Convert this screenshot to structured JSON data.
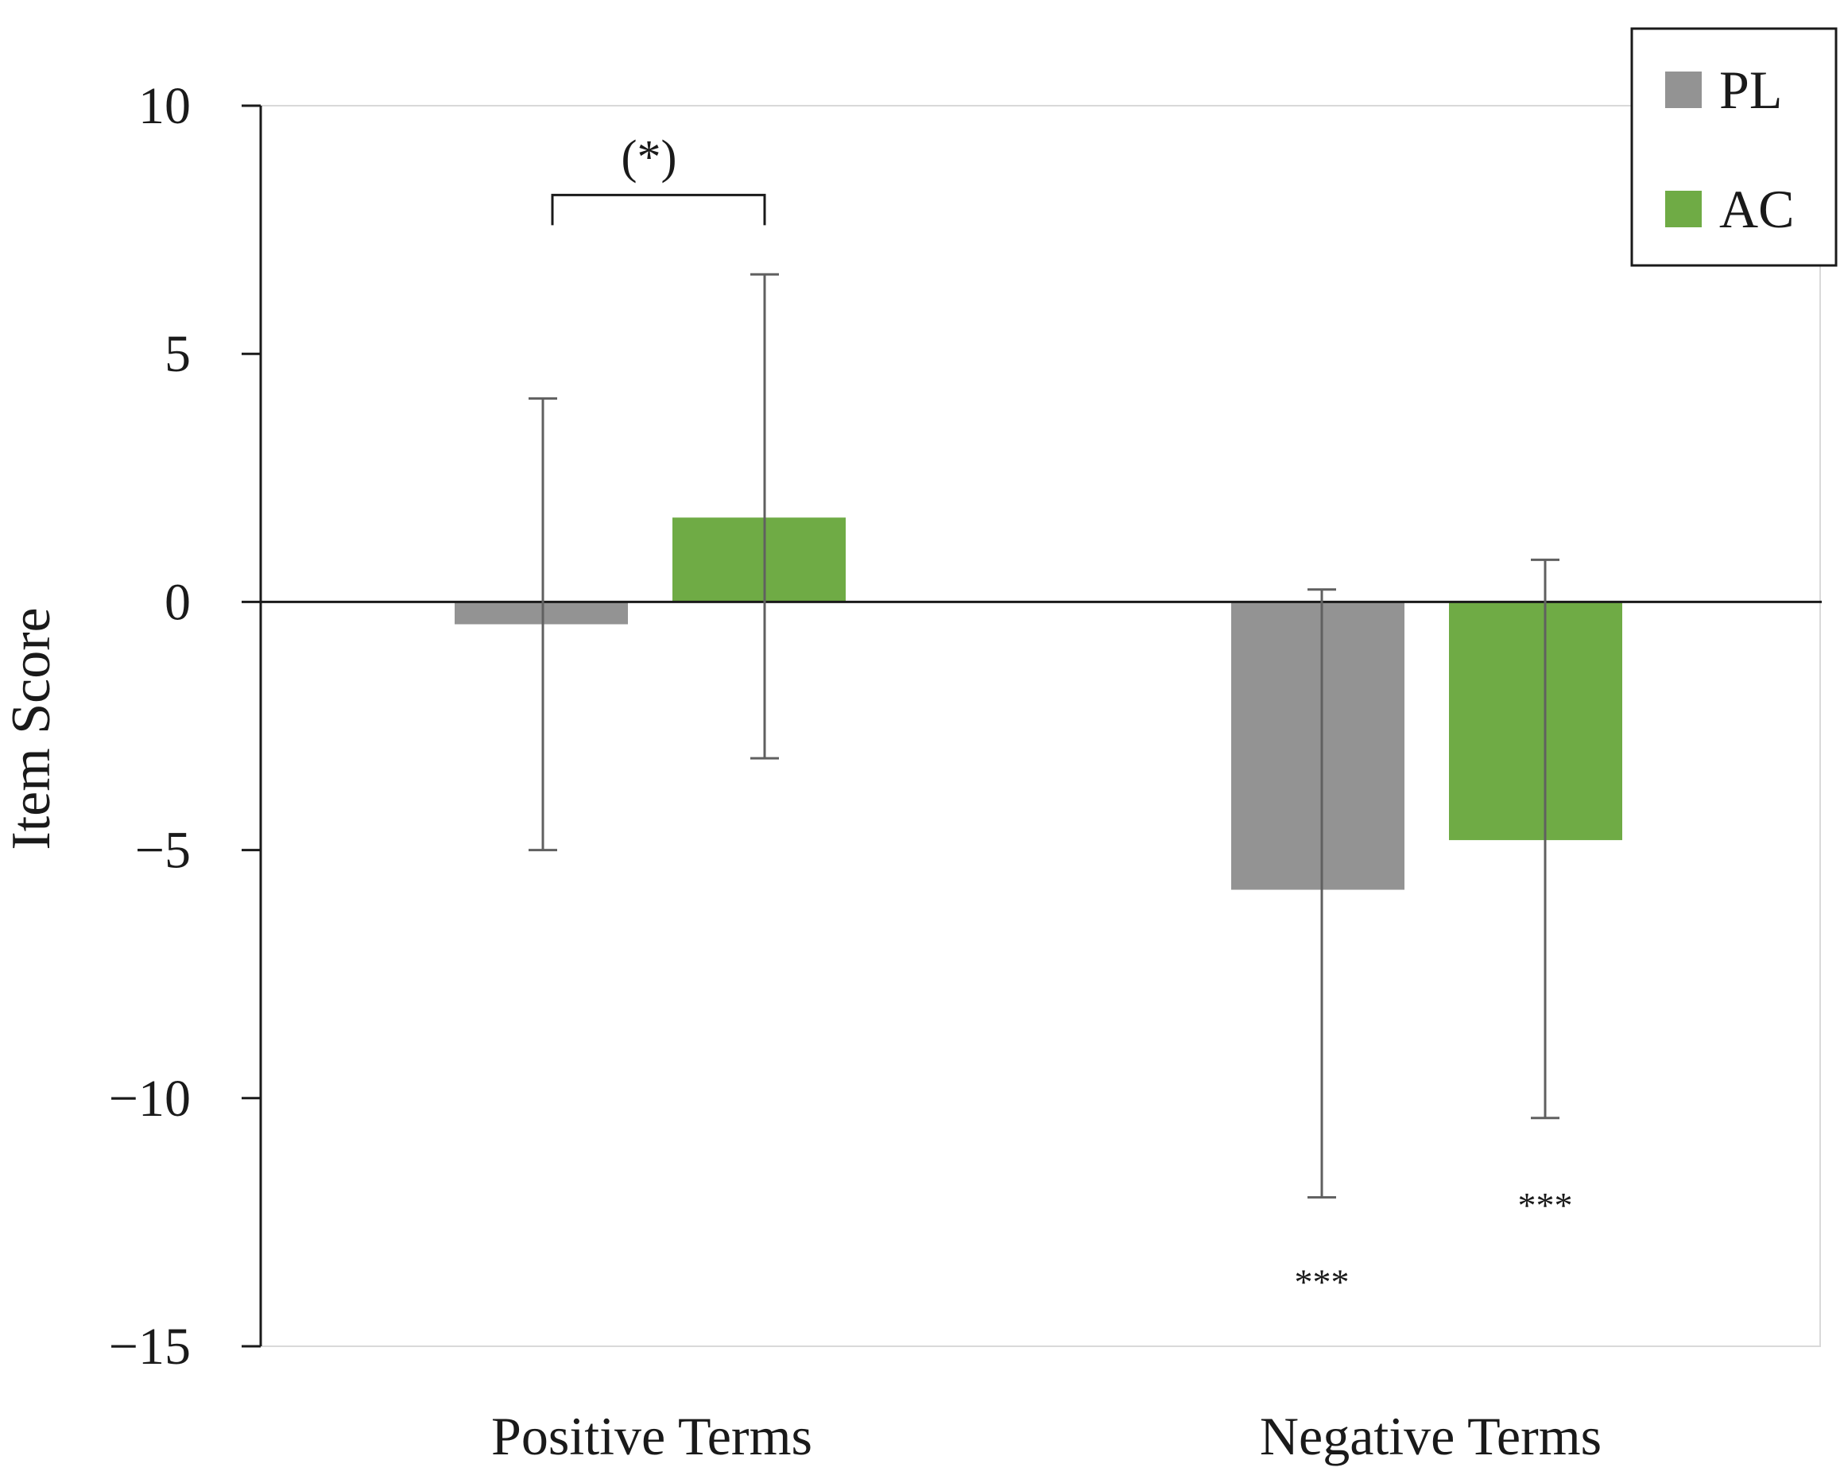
{
  "chart_data": {
    "type": "bar",
    "title": "",
    "xlabel": "",
    "ylabel": "Item Score",
    "ylim": [
      -15,
      10
    ],
    "yticks": [
      10,
      5,
      0,
      -5,
      -10,
      -15
    ],
    "ytick_labels": [
      "10",
      "5",
      "0",
      "−5",
      "−10",
      "−15"
    ],
    "categories": [
      "Positive Terms",
      "Negative Terms"
    ],
    "series": [
      {
        "name": "PL",
        "color": "#939393",
        "values": [
          -0.45,
          -5.8
        ],
        "error_low": [
          -5.0,
          -12.0
        ],
        "error_high": [
          4.1,
          0.25
        ]
      },
      {
        "name": "AC",
        "color": "#6fab45",
        "values": [
          1.7,
          -4.8
        ],
        "error_low": [
          -3.15,
          -10.4
        ],
        "error_high": [
          6.6,
          0.85
        ]
      }
    ],
    "legend": {
      "position": "top-right",
      "entries": [
        "PL",
        "AC"
      ]
    },
    "grid": false,
    "annotations": [
      {
        "label": "(*)",
        "type": "bracket",
        "category": 0,
        "between": [
          "PL",
          "AC"
        ],
        "y": 8.2
      },
      {
        "label": "***",
        "type": "below-error",
        "category": 1,
        "series": "PL",
        "y": -13.6
      },
      {
        "label": "***",
        "type": "below-error",
        "category": 1,
        "series": "AC",
        "y": -12.05
      }
    ]
  }
}
